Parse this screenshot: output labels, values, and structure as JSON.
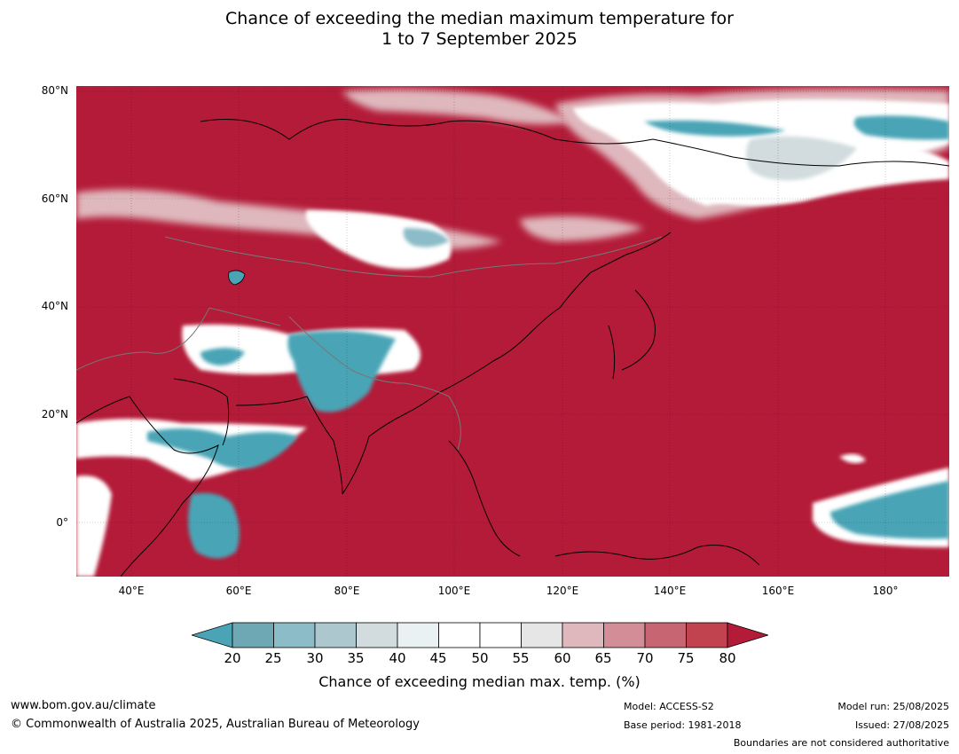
{
  "title_line1": "Chance of exceeding the median maximum temperature for",
  "title_line2": "1 to 7 September 2025",
  "lat_labels": [
    "80°N",
    "60°N",
    "40°N",
    "20°N",
    "0°"
  ],
  "lon_labels": [
    "40°E",
    "60°E",
    "80°E",
    "100°E",
    "120°E",
    "140°E",
    "160°E",
    "180°"
  ],
  "colorbar": {
    "ticks": [
      "20",
      "25",
      "30",
      "35",
      "40",
      "45",
      "50",
      "55",
      "60",
      "65",
      "70",
      "75",
      "80"
    ],
    "colors": [
      "#4aa4b6",
      "#6ea8b5",
      "#8bbcc7",
      "#acc7cd",
      "#d2dcde",
      "#eaf1f3",
      "#ffffff",
      "#ffffff",
      "#e6e6e6",
      "#dfb8bd",
      "#d38d96",
      "#c86572",
      "#c0434f",
      "#b31b38"
    ],
    "label": "Chance of exceeding median max. temp. (%)"
  },
  "footer": {
    "website": "www.bom.gov.au/climate",
    "copyright": "© Commonwealth of Australia 2025, Australian Bureau of Meteorology",
    "model": "Model: ACCESS-S2",
    "base_period": "Base period: 1981-2018",
    "model_run": "Model run: 25/08/2025",
    "issued": "Issued: 27/08/2025",
    "boundaries_note": "Boundaries are not considered authoritative"
  }
}
